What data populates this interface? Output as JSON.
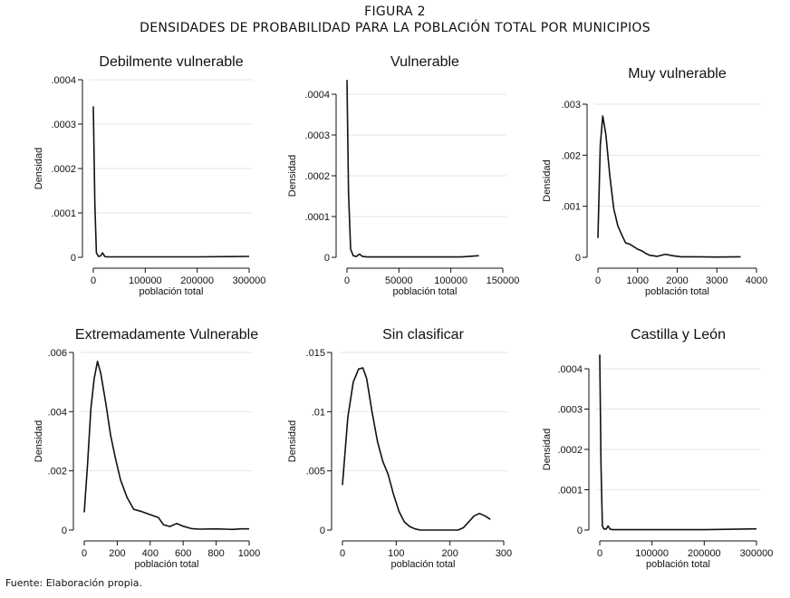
{
  "figure": {
    "label": "FIGURA 2",
    "title": "DENSIDADES DE PROBABILIDAD PARA LA POBLACIÓN TOTAL POR MUNICIPIOS"
  },
  "source": "Fuente: Elaboración propia.",
  "chart_data": [
    {
      "type": "line",
      "title": "Debilmente vulnerable",
      "xlabel": "población total",
      "ylabel": "Densidad",
      "xlim": [
        0,
        300000
      ],
      "ylim": [
        0,
        0.0004
      ],
      "xticks": [
        0,
        100000,
        200000,
        300000
      ],
      "xtick_labels": [
        "0",
        "100000",
        "200000",
        "300000"
      ],
      "yticks": [
        0,
        0.0001,
        0.0002,
        0.0003,
        0.0004
      ],
      "ytick_labels": [
        "0",
        ".0001",
        ".0002",
        ".0003",
        ".0004"
      ],
      "grid": "horizontal",
      "series": [
        {
          "x": [
            0,
            3000,
            6000,
            10000,
            14000,
            18000,
            22000,
            26000,
            40000,
            100000,
            200000,
            300000
          ],
          "y": [
            0.00034,
            0.00012,
            1e-05,
            2e-06,
            3e-06,
            1e-05,
            2e-06,
            1e-06,
            1e-06,
            1e-06,
            1e-06,
            2e-06
          ]
        }
      ]
    },
    {
      "type": "line",
      "title": "Vulnerable",
      "xlabel": "población total",
      "ylabel": "Densidad",
      "xlim": [
        0,
        150000
      ],
      "ylim": [
        0,
        0.0004
      ],
      "xticks": [
        0,
        50000,
        100000,
        150000
      ],
      "xtick_labels": [
        "0",
        "50000",
        "100000",
        "150000"
      ],
      "yticks": [
        0,
        0.0001,
        0.0002,
        0.0003,
        0.0004
      ],
      "ytick_labels": [
        "0",
        ".0001",
        ".0002",
        ".0003",
        ".0004"
      ],
      "grid": "horizontal",
      "series": [
        {
          "x": [
            0,
            1500,
            3500,
            6000,
            9000,
            12000,
            15000,
            20000,
            40000,
            80000,
            110000,
            127000
          ],
          "y": [
            0.000435,
            0.00016,
            2e-05,
            4e-06,
            2e-06,
            8e-06,
            2e-06,
            1e-06,
            1e-06,
            1e-06,
            1e-06,
            4e-06
          ]
        }
      ]
    },
    {
      "type": "line",
      "title": "Muy vulnerable",
      "xlabel": "población total",
      "ylabel": "Densidad",
      "xlim": [
        0,
        4000
      ],
      "ylim": [
        0,
        0.003
      ],
      "xticks": [
        0,
        1000,
        2000,
        3000,
        4000
      ],
      "xtick_labels": [
        "0",
        "1000",
        "2000",
        "3000",
        "4000"
      ],
      "yticks": [
        0,
        0.001,
        0.002,
        0.003
      ],
      "ytick_labels": [
        "0",
        ".001",
        ".002",
        ".003"
      ],
      "grid": "horizontal",
      "series": [
        {
          "x": [
            0,
            60,
            120,
            200,
            300,
            400,
            500,
            600,
            700,
            800,
            900,
            1000,
            1100,
            1200,
            1300,
            1500,
            1700,
            1900,
            2100,
            2500,
            3000,
            3600
          ],
          "y": [
            0.00038,
            0.0022,
            0.00277,
            0.0024,
            0.0016,
            0.00095,
            0.00062,
            0.00044,
            0.00028,
            0.00026,
            0.00021,
            0.00016,
            0.00013,
            8e-05,
            4e-05,
            2e-05,
            6e-05,
            3e-05,
            1e-05,
            1e-05,
            5e-06,
            1e-05
          ]
        }
      ]
    },
    {
      "type": "line",
      "title": "Extremadamente Vulnerable",
      "xlabel": "población total",
      "ylabel": "Densidad",
      "xlim": [
        0,
        1000
      ],
      "ylim": [
        0,
        0.006
      ],
      "xticks": [
        0,
        200,
        400,
        600,
        800,
        1000
      ],
      "xtick_labels": [
        "0",
        "200",
        "400",
        "600",
        "800",
        "1000"
      ],
      "yticks": [
        0,
        0.002,
        0.004,
        0.006
      ],
      "ytick_labels": [
        "0",
        ".002",
        ".004",
        ".006"
      ],
      "grid": "horizontal",
      "series": [
        {
          "x": [
            0,
            20,
            40,
            60,
            80,
            100,
            130,
            160,
            190,
            220,
            260,
            300,
            350,
            400,
            450,
            480,
            520,
            560,
            600,
            650,
            700,
            800,
            900,
            950,
            1000
          ],
          "y": [
            0.0006,
            0.0022,
            0.0041,
            0.0051,
            0.0057,
            0.0053,
            0.0043,
            0.0032,
            0.0024,
            0.0017,
            0.0011,
            0.0007,
            0.00062,
            0.00052,
            0.00042,
            0.00018,
            0.00012,
            0.00022,
            0.00013,
            5e-05,
            3e-05,
            4e-05,
            2e-05,
            4e-05,
            4e-05
          ]
        }
      ]
    },
    {
      "type": "line",
      "title": "Sin clasificar",
      "xlabel": "población total",
      "ylabel": "Densidad",
      "xlim": [
        0,
        300
      ],
      "ylim": [
        0,
        0.015
      ],
      "xticks": [
        0,
        100,
        200,
        300
      ],
      "xtick_labels": [
        "0",
        "100",
        "200",
        "300"
      ],
      "yticks": [
        0,
        0.005,
        0.01,
        0.015
      ],
      "ytick_labels": [
        "0",
        ".005",
        ".01",
        ".015"
      ],
      "grid": "horizontal",
      "series": [
        {
          "x": [
            0,
            10,
            20,
            30,
            38,
            45,
            55,
            65,
            75,
            85,
            95,
            105,
            115,
            125,
            135,
            145,
            160,
            180,
            200,
            215,
            225,
            235,
            245,
            255,
            265,
            275
          ],
          "y": [
            0.0038,
            0.0095,
            0.0125,
            0.0136,
            0.0137,
            0.0128,
            0.01,
            0.0075,
            0.0058,
            0.0047,
            0.003,
            0.0016,
            0.0007,
            0.0003,
            0.0001,
            0.0,
            0.0,
            0.0,
            0.0,
            0.0,
            0.0002,
            0.0007,
            0.0012,
            0.0014,
            0.0012,
            0.0009
          ]
        }
      ]
    },
    {
      "type": "line",
      "title": "Castilla y León",
      "xlabel": "población total",
      "ylabel": "Densidad",
      "xlim": [
        0,
        300000
      ],
      "ylim": [
        0,
        0.0004
      ],
      "xticks": [
        0,
        100000,
        200000,
        300000
      ],
      "xtick_labels": [
        "0",
        "100000",
        "200000",
        "300000"
      ],
      "yticks": [
        0,
        0.0001,
        0.0002,
        0.0003,
        0.0004
      ],
      "ytick_labels": [
        "0",
        ".0001",
        ".0002",
        ".0003",
        ".0004"
      ],
      "grid": "horizontal",
      "series": [
        {
          "x": [
            0,
            2500,
            5000,
            8000,
            12000,
            16000,
            20000,
            25000,
            40000,
            100000,
            200000,
            300000
          ],
          "y": [
            0.000435,
            0.00016,
            1e-05,
            3e-06,
            2e-06,
            1e-05,
            2e-06,
            1e-06,
            1e-06,
            1e-06,
            1e-06,
            3e-06
          ]
        }
      ]
    }
  ]
}
